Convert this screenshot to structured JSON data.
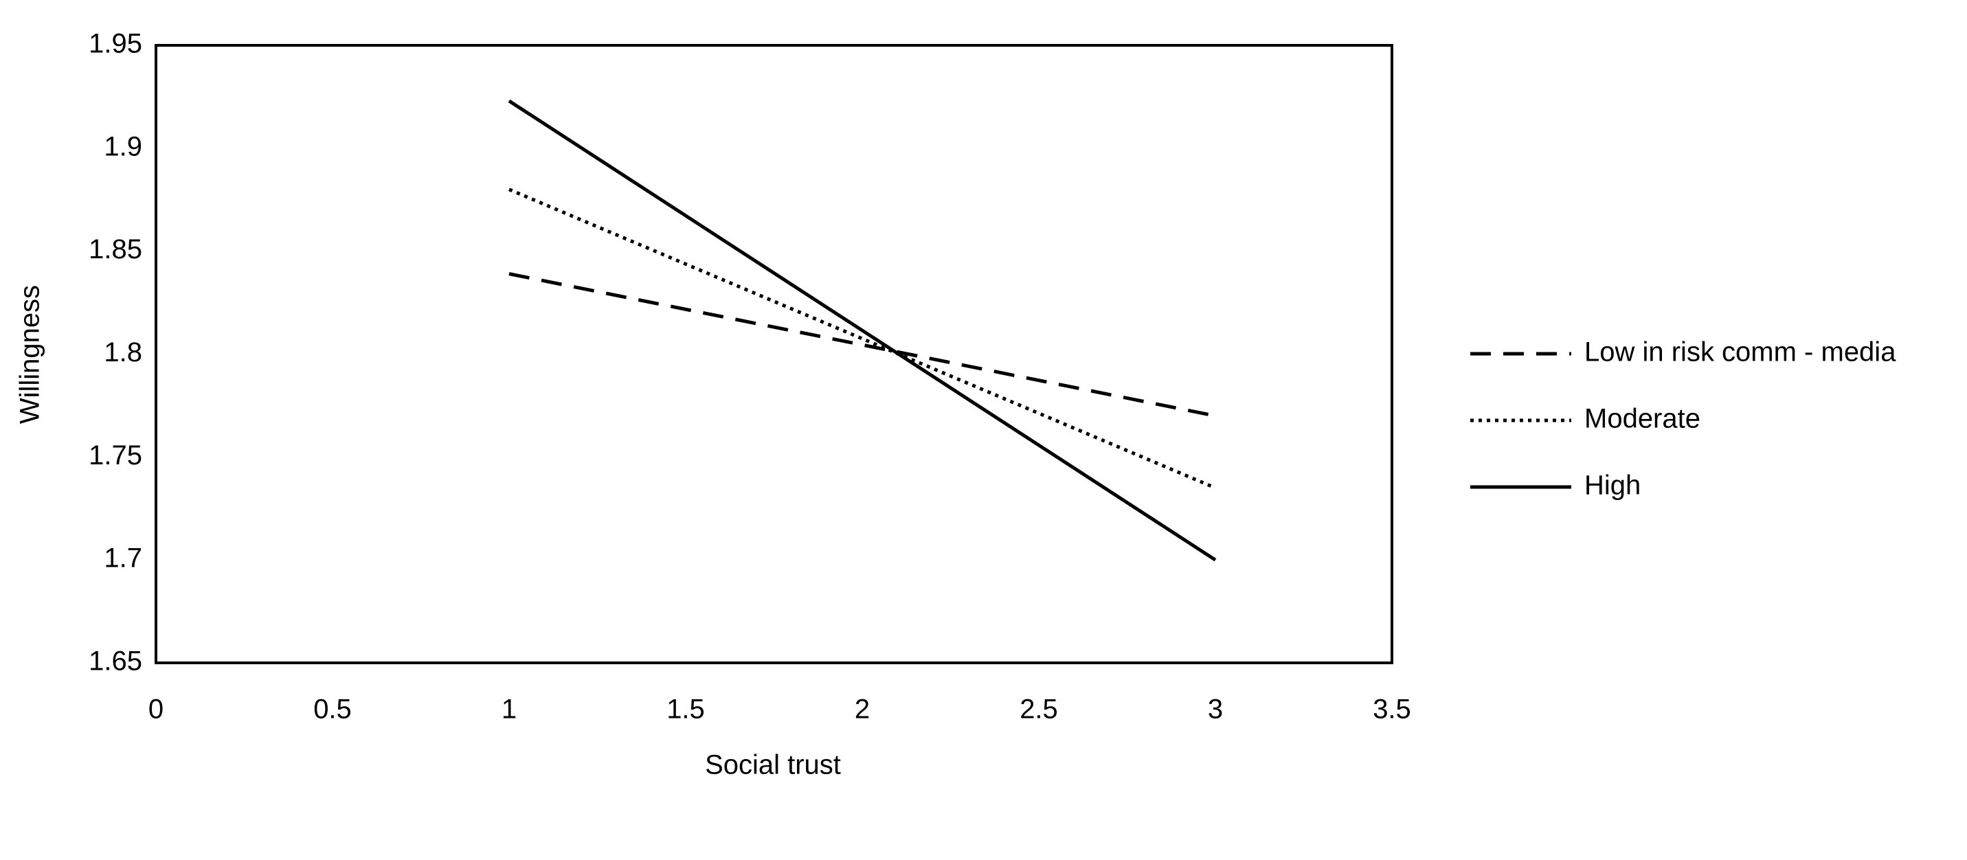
{
  "chart_data": {
    "type": "line",
    "x_label": "Social trust",
    "y_label": "Willingness",
    "x": [
      1,
      3
    ],
    "series": [
      {
        "name": "Low in risk comm - media",
        "color": "#000000",
        "dash": "dashed",
        "values": [
          1.839,
          1.77
        ]
      },
      {
        "name": "Moderate",
        "color": "#000000",
        "dash": "dotted",
        "values": [
          1.88,
          1.735
        ]
      },
      {
        "name": "High",
        "color": "#000000",
        "dash": "solid",
        "values": [
          1.923,
          1.7
        ]
      }
    ],
    "xlim": [
      0,
      3.5
    ],
    "xticks": [
      0,
      0.5,
      1,
      1.5,
      2,
      2.5,
      3,
      3.5
    ],
    "ylim": [
      1.65,
      1.95
    ],
    "yticks": [
      1.65,
      1.7,
      1.75,
      1.8,
      1.85,
      1.9,
      1.95
    ],
    "grid": false,
    "legend": "right"
  }
}
